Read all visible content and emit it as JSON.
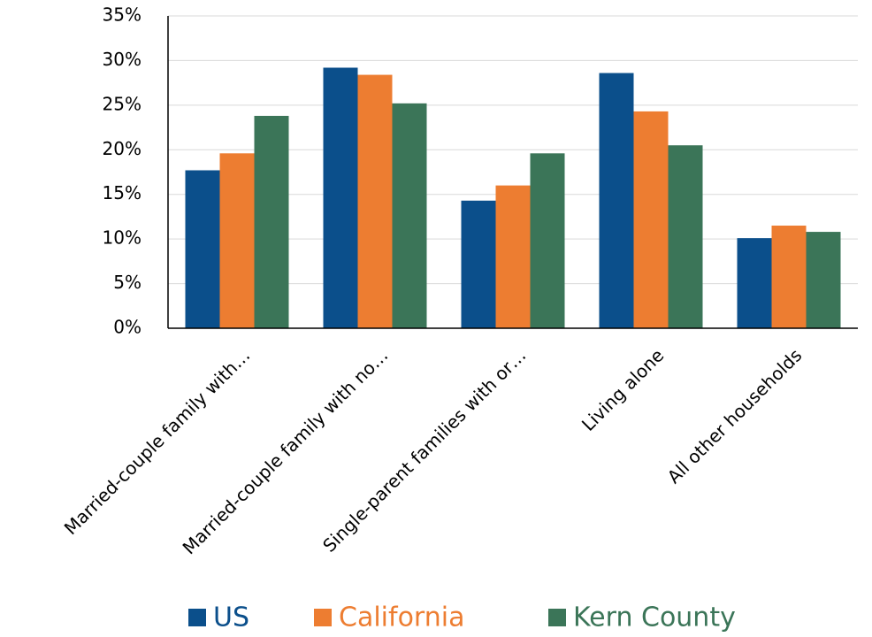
{
  "chart_data": {
    "type": "bar",
    "categories": [
      "Married-couple family with…",
      "Married-couple family with no…",
      "Single-parent families with or…",
      "Living alone",
      "All other households"
    ],
    "series": [
      {
        "name": "US",
        "color": "#0b4f8b",
        "values": [
          17.7,
          29.2,
          14.3,
          28.6,
          10.1
        ]
      },
      {
        "name": "California",
        "color": "#ed7d31",
        "values": [
          19.6,
          28.4,
          16.0,
          24.3,
          11.5
        ]
      },
      {
        "name": "Kern County",
        "color": "#3b7558",
        "values": [
          23.8,
          25.2,
          19.6,
          20.5,
          10.8
        ]
      }
    ],
    "ylim": [
      0,
      35
    ],
    "yticks": [
      {
        "value": 0,
        "label": "0%"
      },
      {
        "value": 5,
        "label": "5%"
      },
      {
        "value": 10,
        "label": "10%"
      },
      {
        "value": 15,
        "label": "15%"
      },
      {
        "value": 20,
        "label": "20%"
      },
      {
        "value": 25,
        "label": "25%"
      },
      {
        "value": 30,
        "label": "30%"
      },
      {
        "value": 35,
        "label": "35%"
      }
    ],
    "grid": true,
    "legend": "bottom"
  }
}
